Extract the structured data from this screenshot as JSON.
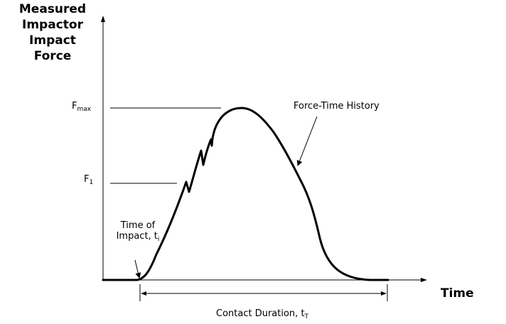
{
  "y_axis": {
    "title_lines": [
      "Measured",
      "Impactor",
      "Impact",
      "Force"
    ]
  },
  "x_axis": {
    "title": "Time"
  },
  "levels": {
    "fmax": {
      "base": "F",
      "sub": "max"
    },
    "f1": {
      "base": "F",
      "sub": "1"
    }
  },
  "annotations": {
    "curve_label": "Force-Time History",
    "impact_line1": "Time of",
    "impact_line2_base": "Impact, t",
    "impact_line2_sub": "i",
    "duration_base": "Contact Duration, t",
    "duration_sub": "T"
  },
  "colors": {
    "ink": "#000000",
    "background": "#ffffff"
  }
}
